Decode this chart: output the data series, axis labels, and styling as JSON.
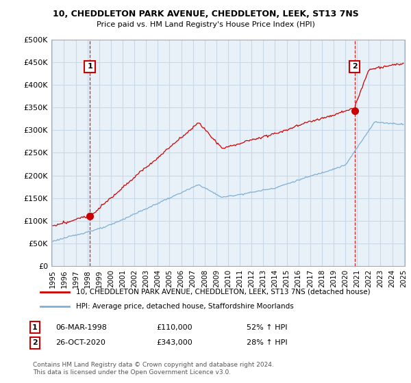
{
  "title": "10, CHEDDLETON PARK AVENUE, CHEDDLETON, LEEK, ST13 7NS",
  "subtitle": "Price paid vs. HM Land Registry's House Price Index (HPI)",
  "ylabel_ticks": [
    "£0",
    "£50K",
    "£100K",
    "£150K",
    "£200K",
    "£250K",
    "£300K",
    "£350K",
    "£400K",
    "£450K",
    "£500K"
  ],
  "ytick_values": [
    0,
    50000,
    100000,
    150000,
    200000,
    250000,
    300000,
    350000,
    400000,
    450000,
    500000
  ],
  "ylim": [
    0,
    500000
  ],
  "sale1_price": 110000,
  "sale2_price": 343000,
  "sale1_year": 1998,
  "sale1_month": 3,
  "sale2_year": 2020,
  "sale2_month": 10,
  "sale1_date_label": "06-MAR-1998",
  "sale2_date_label": "26-OCT-2020",
  "sale1_hpi_text": "52% ↑ HPI",
  "sale2_hpi_text": "28% ↑ HPI",
  "legend_red": "10, CHEDDLETON PARK AVENUE, CHEDDLETON, LEEK, ST13 7NS (detached house)",
  "legend_blue": "HPI: Average price, detached house, Staffordshire Moorlands",
  "footer": "Contains HM Land Registry data © Crown copyright and database right 2024.\nThis data is licensed under the Open Government Licence v3.0.",
  "red_color": "#cc0000",
  "blue_color": "#7fafd4",
  "grid_color": "#c8d8e8",
  "bg_color": "#ffffff",
  "plot_bg_color": "#e8f0f8",
  "dashed_color": "#cc0000"
}
